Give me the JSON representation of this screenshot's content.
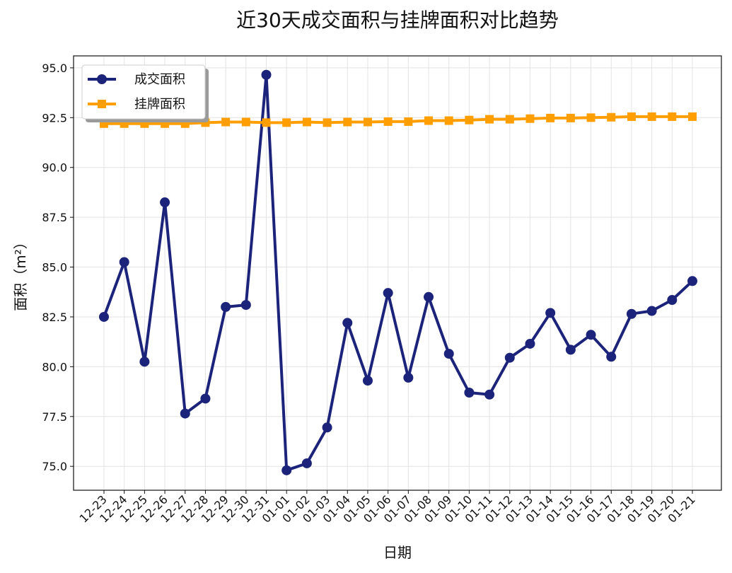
{
  "chart_data": {
    "type": "line",
    "title": "近30天成交面积与挂牌面积对比趋势",
    "xlabel": "日期",
    "ylabel": "面积（m²）",
    "ylim": [
      73.8,
      95.6
    ],
    "yticks": [
      "75.0",
      "77.5",
      "80.0",
      "82.5",
      "85.0",
      "87.5",
      "90.0",
      "92.5",
      "95.0"
    ],
    "grid": true,
    "legend_position": "top-left",
    "categories": [
      "12-23",
      "12-24",
      "12-25",
      "12-26",
      "12-27",
      "12-28",
      "12-29",
      "12-30",
      "12-31",
      "01-01",
      "01-02",
      "01-03",
      "01-04",
      "01-05",
      "01-06",
      "01-07",
      "01-08",
      "01-09",
      "01-10",
      "01-11",
      "01-12",
      "01-13",
      "01-14",
      "01-15",
      "01-16",
      "01-17",
      "01-18",
      "01-19",
      "01-20",
      "01-21"
    ],
    "series": [
      {
        "name": "成交面积",
        "color": "#1b237a",
        "marker": "circle",
        "values": [
          82.5,
          85.25,
          80.25,
          88.25,
          77.65,
          78.4,
          83.0,
          83.1,
          94.65,
          74.8,
          75.15,
          76.95,
          82.2,
          79.3,
          83.7,
          79.45,
          83.5,
          80.65,
          78.7,
          78.6,
          80.45,
          81.15,
          82.7,
          80.85,
          81.6,
          80.5,
          82.65,
          82.8,
          83.35,
          84.3
        ]
      },
      {
        "name": "挂牌面积",
        "color": "#ff9e00",
        "marker": "square",
        "values": [
          92.2,
          92.2,
          92.2,
          92.2,
          92.2,
          92.25,
          92.28,
          92.28,
          92.25,
          92.25,
          92.28,
          92.25,
          92.28,
          92.28,
          92.3,
          92.3,
          92.35,
          92.35,
          92.38,
          92.42,
          92.42,
          92.45,
          92.48,
          92.48,
          92.5,
          92.52,
          92.55,
          92.55,
          92.55,
          92.55
        ]
      }
    ]
  }
}
